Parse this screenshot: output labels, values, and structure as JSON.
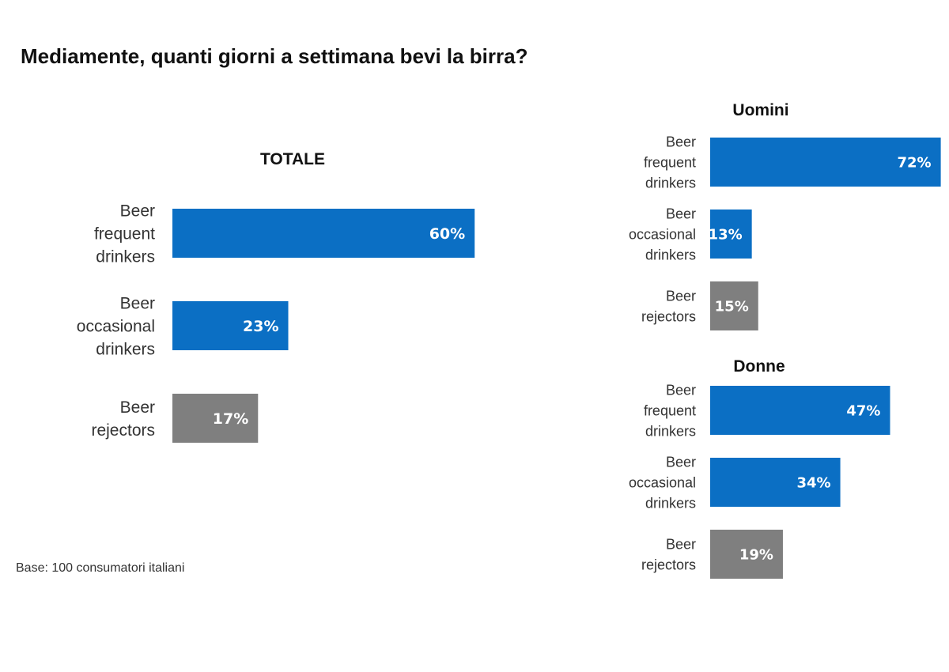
{
  "title": "Mediamente, quanti giorni a settimana bevi la birra?",
  "footnote": "Base: 100 consumatori italiani",
  "colors": {
    "drinkers": "#0b6fc4",
    "rejectors": "#7f7f7f"
  },
  "chart_data": [
    {
      "type": "bar",
      "orientation": "horizontal",
      "title": "TOTALE",
      "categories": [
        "Beer frequent drinkers",
        "Beer occasional drinkers",
        "Beer rejectors"
      ],
      "category_lines": [
        [
          "Beer",
          "frequent",
          "drinkers"
        ],
        [
          "Beer",
          "occasional",
          "drinkers"
        ],
        [
          "Beer",
          "rejectors"
        ]
      ],
      "values": [
        60,
        23,
        17
      ],
      "labels": [
        "60%",
        "23%",
        "17%"
      ],
      "unit": "%"
    },
    {
      "type": "bar",
      "orientation": "horizontal",
      "title": "Uomini",
      "categories": [
        "Beer frequent drinkers",
        "Beer occasional drinkers",
        "Beer rejectors"
      ],
      "category_lines": [
        [
          "Beer",
          "frequent",
          "drinkers"
        ],
        [
          "Beer",
          "occasional",
          "drinkers"
        ],
        [
          "Beer",
          "rejectors"
        ]
      ],
      "values": [
        72,
        13,
        15
      ],
      "labels": [
        "72%",
        "13%",
        "15%"
      ],
      "unit": "%"
    },
    {
      "type": "bar",
      "orientation": "horizontal",
      "title": "Donne",
      "categories": [
        "Beer frequent drinkers",
        "Beer occasional drinkers",
        "Beer rejectors"
      ],
      "category_lines": [
        [
          "Beer",
          "frequent",
          "drinkers"
        ],
        [
          "Beer",
          "occasional",
          "drinkers"
        ],
        [
          "Beer",
          "rejectors"
        ]
      ],
      "values": [
        47,
        34,
        19
      ],
      "labels": [
        "47%",
        "34%",
        "19%"
      ],
      "unit": "%"
    }
  ]
}
